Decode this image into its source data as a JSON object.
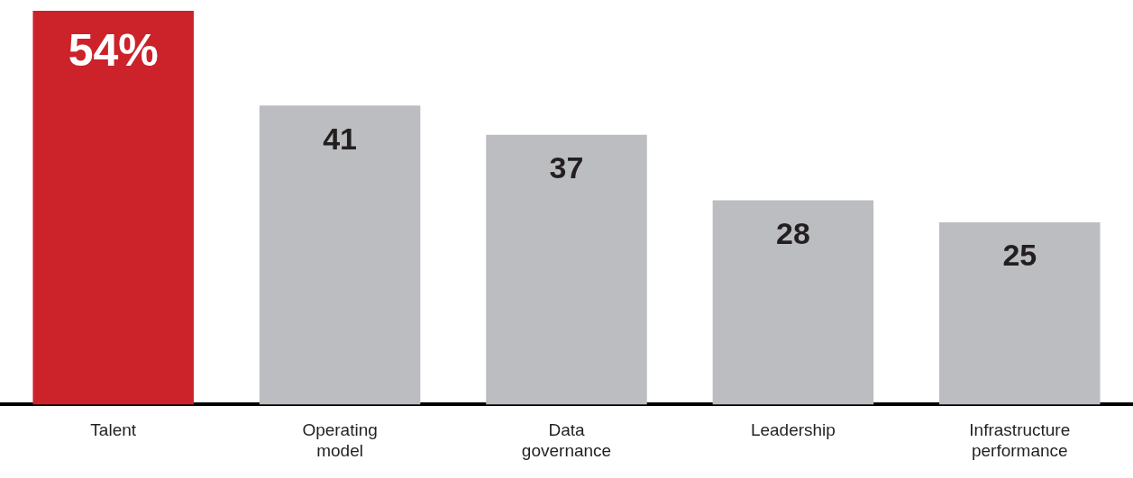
{
  "chart_data": {
    "type": "bar",
    "categories": [
      "Talent",
      "Operating model",
      "Data governance",
      "Leadership",
      "Infrastructure performance"
    ],
    "values": [
      54,
      41,
      37,
      28,
      25
    ],
    "colors": [
      "#cc2229",
      "#bcbdc0",
      "#bcbdc0",
      "#bcbdc0",
      "#bcbdc0"
    ],
    "value_labels": [
      "54%",
      "41",
      "37",
      "28",
      "25"
    ],
    "grid": false,
    "legend": false
  }
}
